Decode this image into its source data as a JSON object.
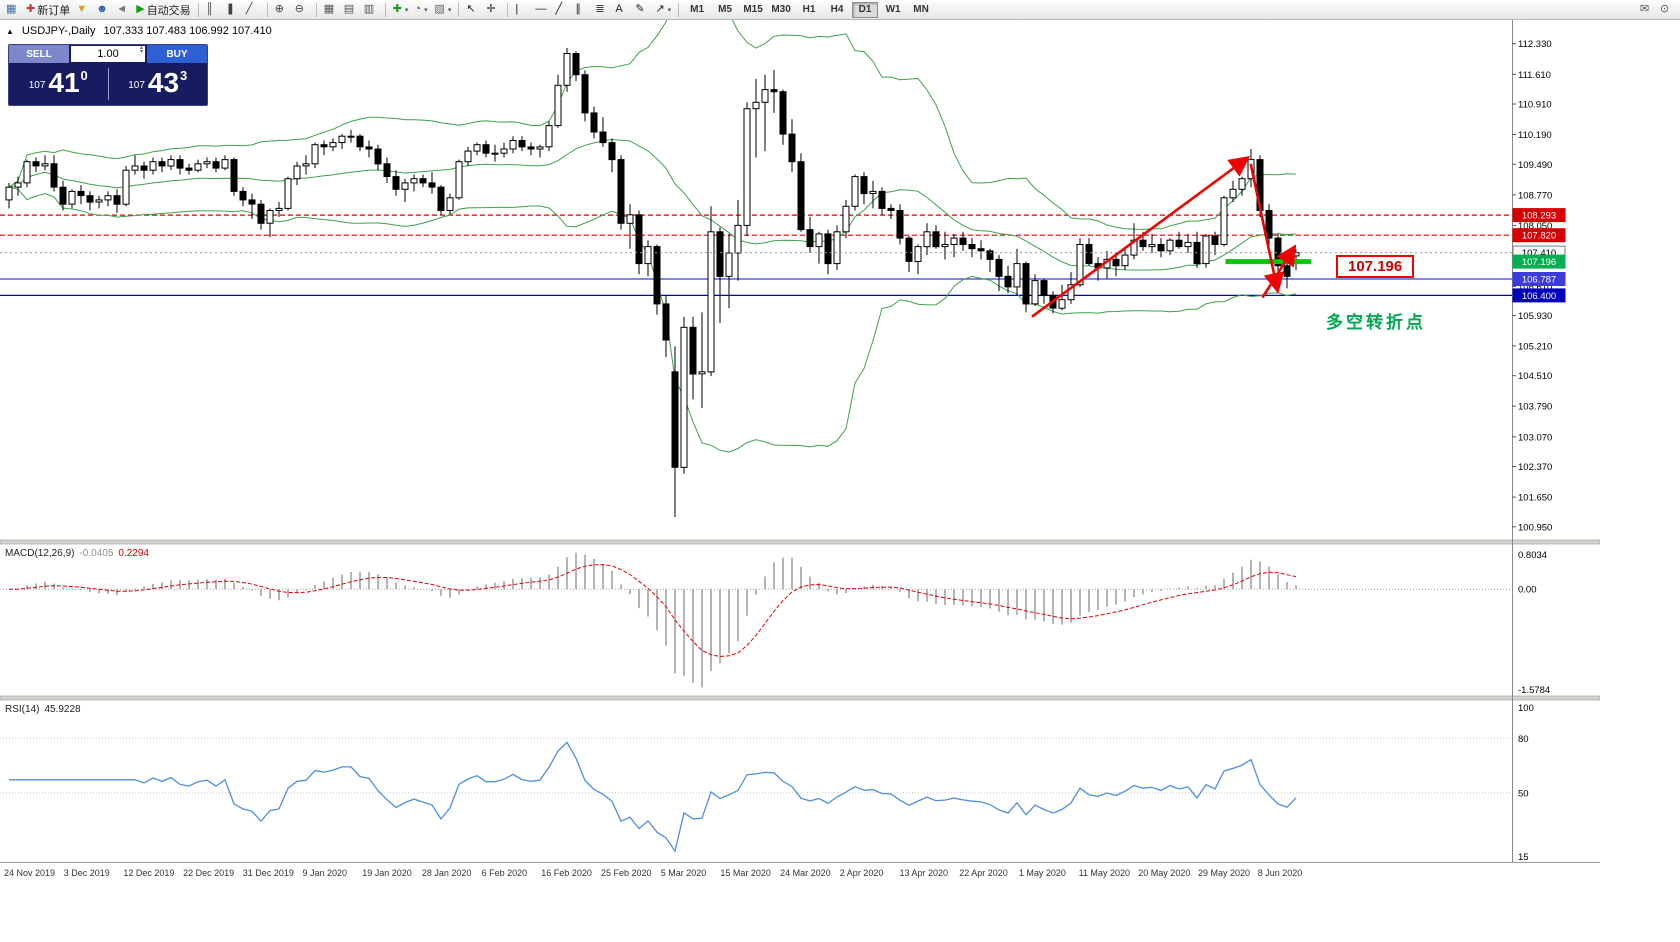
{
  "toolbar": {
    "caret_glyph": "▾",
    "items": [
      {
        "name": "new-window-icon",
        "glyph": "▦",
        "color": "#3a6ea5"
      },
      {
        "name": "new-order-button",
        "glyph": "✚",
        "color": "#c43c3c",
        "label": "新订单"
      },
      {
        "name": "wizard-icon",
        "glyph": "▼",
        "color": "#d9a21e"
      },
      {
        "name": "profile-icon",
        "glyph": "☻",
        "color": "#2a5fb4"
      },
      {
        "name": "broadcast-icon",
        "glyph": "◄",
        "color": "#777777"
      },
      {
        "name": "autotrading-button",
        "glyph": "▶",
        "color": "#18a018",
        "label": "自动交易"
      },
      {
        "sep": true
      },
      {
        "name": "bar-chart-icon",
        "glyph": "║",
        "color": "#444444"
      },
      {
        "name": "candlestick-chart-icon",
        "glyph": "❚",
        "color": "#444444"
      },
      {
        "name": "line-chart-icon",
        "glyph": "╱",
        "color": "#444444"
      },
      {
        "sep": true
      },
      {
        "name": "zoom-in-icon",
        "glyph": "⊕",
        "color": "#444444"
      },
      {
        "name": "zoom-out-icon",
        "glyph": "⊖",
        "color": "#444444"
      },
      {
        "sep": true
      },
      {
        "name": "tile-windows-icon",
        "glyph": "▦",
        "color": "#555555"
      },
      {
        "name": "cascade-windows-icon",
        "glyph": "▤",
        "color": "#555555"
      },
      {
        "name": "arrange-windows-icon",
        "glyph": "▥",
        "color": "#555555"
      },
      {
        "sep": true
      },
      {
        "name": "new-chart-dropdown",
        "glyph": "✚",
        "color": "#18a018",
        "dropdown": true
      },
      {
        "name": "profiles-dropdown",
        "glyph": "◔",
        "color": "#2a5fb4",
        "dropdown": true
      },
      {
        "name": "templates-dropdown",
        "glyph": "▧",
        "color": "#666666",
        "dropdown": true
      },
      {
        "sep": true
      },
      {
        "name": "cursor-tool",
        "glyph": "↖",
        "color": "#222222"
      },
      {
        "name": "crosshair-tool",
        "glyph": "✛",
        "color": "#222222"
      },
      {
        "sep": true
      },
      {
        "name": "vertical-line-tool",
        "glyph": "|",
        "color": "#222222"
      },
      {
        "name": "horizontal-line-tool",
        "glyph": "―",
        "color": "#222222"
      },
      {
        "name": "trendline-tool",
        "glyph": "╱",
        "color": "#222222"
      },
      {
        "name": "channel-tool",
        "glyph": "∥",
        "color": "#222222"
      },
      {
        "name": "fibonacci-tool",
        "glyph": "≣",
        "color": "#222222"
      },
      {
        "name": "text-tool",
        "glyph": "A",
        "color": "#222222"
      },
      {
        "name": "label-tool",
        "glyph": "✎",
        "color": "#222222"
      },
      {
        "name": "arrows-dropdown",
        "glyph": "↗",
        "color": "#222222",
        "dropdown": true
      },
      {
        "sep": true
      }
    ],
    "timeframes": [
      "M1",
      "M5",
      "M15",
      "M30",
      "H1",
      "H4",
      "D1",
      "W1",
      "MN"
    ],
    "active_timeframe": "D1",
    "right_items": [
      {
        "name": "news-icon",
        "glyph": "✉",
        "color": "#555555"
      },
      {
        "name": "search-icon",
        "glyph": "⊙",
        "color": "#555555"
      }
    ]
  },
  "chart_header": {
    "toggle_glyph": "▲",
    "symbol": "USDJPY-,Daily",
    "ohlc": "107.333 107.483 106.992 107.410"
  },
  "trade_panel": {
    "sell_label": "SELL",
    "buy_label": "BUY",
    "volume": "1.00",
    "spinner_up": "▴",
    "spinner_down": "▾",
    "sell_prefix": "107",
    "sell_big": "41",
    "sell_sup": "0",
    "buy_prefix": "107",
    "buy_big": "43",
    "buy_sup": "3"
  },
  "price_axis": [
    "112.330",
    "111.610",
    "110.910",
    "110.190",
    "109.490",
    "108.770",
    "108.050",
    "107.330",
    "106.610",
    "105.930",
    "105.210",
    "104.510",
    "103.790",
    "103.070",
    "102.370",
    "101.650",
    "100.950"
  ],
  "price_tags": [
    {
      "text": "108.293",
      "price": 108.293,
      "bg": "#d40000",
      "fg": "#ffffff"
    },
    {
      "text": "107.820",
      "price": 107.82,
      "bg": "#d40000",
      "fg": "#ffffff"
    },
    {
      "text": "107.410",
      "price": 107.41,
      "bg": "#f8f8f8",
      "fg": "#000000",
      "border": "#808080"
    },
    {
      "text": "107.196",
      "price": 107.196,
      "bg": "#00b050",
      "fg": "#ffffff"
    },
    {
      "text": "106.787",
      "price": 106.787,
      "bg": "#3c3cdc",
      "fg": "#ffffff"
    },
    {
      "text": "106.400",
      "price": 106.4,
      "bg": "#0000bb",
      "fg": "#ffffff"
    }
  ],
  "macd_panel": {
    "label": "MACD(12,26,9)",
    "value_main": "-0.0405",
    "value_signal": "0.2294",
    "axis_top": "0.8034",
    "axis_zero": "0.00",
    "axis_bottom": "-1.5784"
  },
  "rsi_panel": {
    "label": "RSI(14)",
    "value": "45.9228",
    "axis_labels": [
      "100",
      "80",
      "50",
      "15"
    ]
  },
  "date_axis": [
    "24 Nov 2019",
    "3 Dec 2019",
    "12 Dec 2019",
    "22 Dec 2019",
    "31 Dec 2019",
    "9 Jan 2020",
    "19 Jan 2020",
    "28 Jan 2020",
    "6 Feb 2020",
    "16 Feb 2020",
    "25 Feb 2020",
    "5 Mar 2020",
    "15 Mar 2020",
    "24 Mar 2020",
    "2 Apr 2020",
    "13 Apr 2020",
    "22 Apr 2020",
    "1 May 2020",
    "11 May 2020",
    "20 May 2020",
    "29 May 2020",
    "8 Jun 2020"
  ],
  "annotations": {
    "turning_point": "多空转折点",
    "level_label": "107.196",
    "arrow_color": "#f00000",
    "green_segment": {
      "price": 107.196,
      "from_index": 135.5,
      "to_index": 145,
      "color": "#00c800",
      "width": 5
    },
    "arrows": [
      {
        "from": {
          "i": 114,
          "p": 105.9
        },
        "to": {
          "i": 138,
          "p": 109.65
        }
      },
      {
        "from": {
          "i": 138.3,
          "p": 109.5
        },
        "to": {
          "i": 141.3,
          "p": 106.5
        }
      },
      {
        "from": {
          "i": 139.6,
          "p": 106.35
        },
        "to": {
          "i": 143.2,
          "p": 107.55
        }
      }
    ]
  },
  "chart_data": {
    "type": "candlestick",
    "symbol": "USDJPY-",
    "timeframe": "Daily",
    "current_price": 107.41,
    "ohlc_last": {
      "open": 107.333,
      "high": 107.483,
      "low": 106.992,
      "close": 107.41
    },
    "price_range_visible": [
      100.95,
      112.33
    ],
    "hlines": [
      {
        "price": 108.293,
        "color": "#e00000",
        "dash": "5 3"
      },
      {
        "price": 107.82,
        "color": "#e00000",
        "dash": "5 3"
      },
      {
        "price": 106.787,
        "color": "#3c3cdc"
      },
      {
        "price": 106.4,
        "color": "#0000bb"
      }
    ],
    "indicators": {
      "bollinger": {
        "period": 20,
        "deviation": 2,
        "color": "#3fa14c"
      },
      "macd": {
        "fast": 12,
        "slow": 26,
        "signal": 9
      },
      "rsi": {
        "period": 14,
        "levels": [
          80,
          50
        ]
      }
    },
    "candles": [
      [
        108.65,
        109.05,
        108.45,
        108.95
      ],
      [
        108.95,
        109.2,
        108.75,
        109.05
      ],
      [
        109.05,
        109.6,
        108.95,
        109.55
      ],
      [
        109.55,
        109.65,
        109.3,
        109.45
      ],
      [
        109.45,
        109.7,
        109.35,
        109.5
      ],
      [
        109.5,
        109.7,
        108.85,
        108.95
      ],
      [
        108.95,
        109.1,
        108.4,
        108.55
      ],
      [
        108.55,
        108.9,
        108.45,
        108.85
      ],
      [
        108.85,
        109.0,
        108.55,
        108.75
      ],
      [
        108.75,
        108.85,
        108.4,
        108.6
      ],
      [
        108.6,
        108.75,
        108.45,
        108.65
      ],
      [
        108.65,
        108.85,
        108.5,
        108.75
      ],
      [
        108.75,
        108.9,
        108.35,
        108.55
      ],
      [
        108.55,
        109.45,
        108.5,
        109.35
      ],
      [
        109.35,
        109.7,
        109.25,
        109.45
      ],
      [
        109.45,
        109.55,
        109.15,
        109.35
      ],
      [
        109.35,
        109.65,
        109.25,
        109.55
      ],
      [
        109.55,
        109.65,
        109.3,
        109.45
      ],
      [
        109.45,
        109.7,
        109.35,
        109.6
      ],
      [
        109.6,
        109.7,
        109.25,
        109.4
      ],
      [
        109.4,
        109.5,
        109.25,
        109.35
      ],
      [
        109.35,
        109.6,
        109.3,
        109.5
      ],
      [
        109.5,
        109.65,
        109.4,
        109.55
      ],
      [
        109.55,
        109.65,
        109.3,
        109.4
      ],
      [
        109.4,
        109.7,
        109.35,
        109.6
      ],
      [
        109.6,
        109.65,
        108.75,
        108.85
      ],
      [
        108.85,
        108.95,
        108.5,
        108.65
      ],
      [
        108.65,
        108.8,
        108.2,
        108.55
      ],
      [
        108.55,
        108.65,
        107.95,
        108.1
      ],
      [
        108.1,
        108.45,
        107.77,
        108.4
      ],
      [
        108.4,
        108.6,
        108.25,
        108.45
      ],
      [
        108.45,
        109.2,
        108.4,
        109.15
      ],
      [
        109.15,
        109.55,
        109.0,
        109.45
      ],
      [
        109.45,
        109.7,
        109.25,
        109.5
      ],
      [
        109.5,
        110.0,
        109.4,
        109.95
      ],
      [
        109.95,
        110.05,
        109.7,
        109.9
      ],
      [
        109.9,
        110.1,
        109.8,
        110.0
      ],
      [
        110.0,
        110.2,
        109.85,
        110.15
      ],
      [
        110.15,
        110.3,
        110.0,
        110.15
      ],
      [
        110.15,
        110.2,
        109.8,
        109.9
      ],
      [
        109.9,
        110.05,
        109.65,
        109.85
      ],
      [
        109.85,
        109.95,
        109.35,
        109.5
      ],
      [
        109.5,
        109.65,
        109.05,
        109.2
      ],
      [
        109.2,
        109.35,
        108.75,
        108.9
      ],
      [
        108.9,
        109.15,
        108.6,
        109.05
      ],
      [
        109.05,
        109.25,
        108.85,
        109.15
      ],
      [
        109.15,
        109.25,
        108.95,
        109.05
      ],
      [
        109.05,
        109.3,
        108.8,
        108.95
      ],
      [
        108.95,
        109.0,
        108.3,
        108.4
      ],
      [
        108.4,
        108.8,
        108.3,
        108.7
      ],
      [
        108.7,
        109.6,
        108.65,
        109.55
      ],
      [
        109.55,
        109.9,
        109.45,
        109.8
      ],
      [
        109.8,
        110.0,
        109.7,
        109.95
      ],
      [
        109.95,
        110.05,
        109.65,
        109.75
      ],
      [
        109.75,
        109.95,
        109.55,
        109.75
      ],
      [
        109.75,
        110.0,
        109.65,
        109.85
      ],
      [
        109.85,
        110.15,
        109.75,
        110.05
      ],
      [
        110.05,
        110.15,
        109.8,
        109.9
      ],
      [
        109.9,
        110.0,
        109.7,
        109.85
      ],
      [
        109.85,
        109.95,
        109.65,
        109.9
      ],
      [
        109.9,
        110.5,
        109.8,
        110.4
      ],
      [
        110.4,
        111.6,
        110.35,
        111.35
      ],
      [
        111.35,
        112.23,
        111.2,
        112.1
      ],
      [
        112.1,
        112.15,
        111.45,
        111.6
      ],
      [
        111.6,
        111.7,
        110.5,
        110.7
      ],
      [
        110.7,
        110.85,
        110.1,
        110.25
      ],
      [
        110.25,
        110.6,
        109.9,
        110.0
      ],
      [
        110.0,
        110.1,
        109.3,
        109.6
      ],
      [
        109.6,
        109.7,
        107.95,
        108.1
      ],
      [
        108.1,
        108.55,
        107.5,
        108.3
      ],
      [
        108.3,
        108.4,
        106.9,
        107.15
      ],
      [
        107.15,
        107.7,
        106.85,
        107.55
      ],
      [
        107.55,
        107.6,
        105.95,
        106.2
      ],
      [
        106.2,
        106.4,
        104.95,
        105.35
      ],
      [
        104.6,
        105.2,
        101.18,
        102.35
      ],
      [
        102.35,
        105.9,
        102.2,
        105.65
      ],
      [
        105.65,
        105.9,
        103.95,
        104.55
      ],
      [
        104.55,
        106.0,
        103.75,
        104.6
      ],
      [
        104.6,
        108.5,
        104.5,
        107.9
      ],
      [
        107.9,
        108.0,
        105.75,
        106.85
      ],
      [
        106.85,
        107.85,
        106.1,
        107.4
      ],
      [
        107.4,
        108.65,
        106.75,
        108.05
      ],
      [
        108.05,
        110.95,
        107.8,
        110.8
      ],
      [
        110.8,
        111.5,
        109.65,
        110.95
      ],
      [
        110.95,
        111.6,
        109.8,
        111.25
      ],
      [
        111.25,
        111.71,
        110.7,
        111.2
      ],
      [
        111.2,
        111.25,
        109.95,
        110.2
      ],
      [
        110.2,
        110.55,
        109.3,
        109.55
      ],
      [
        109.55,
        109.75,
        107.9,
        107.95
      ],
      [
        107.95,
        108.25,
        107.4,
        107.55
      ],
      [
        107.55,
        107.9,
        107.15,
        107.85
      ],
      [
        107.85,
        107.95,
        106.9,
        107.15
      ],
      [
        107.15,
        108.05,
        107.0,
        107.9
      ],
      [
        107.9,
        108.65,
        107.75,
        108.5
      ],
      [
        108.5,
        109.25,
        108.4,
        109.2
      ],
      [
        109.2,
        109.3,
        108.55,
        108.8
      ],
      [
        108.8,
        109.1,
        108.45,
        108.85
      ],
      [
        108.85,
        108.95,
        108.3,
        108.45
      ],
      [
        108.45,
        108.55,
        108.2,
        108.4
      ],
      [
        108.4,
        108.55,
        107.6,
        107.75
      ],
      [
        107.75,
        107.8,
        106.95,
        107.2
      ],
      [
        107.2,
        107.6,
        106.9,
        107.55
      ],
      [
        107.55,
        108.1,
        107.35,
        107.9
      ],
      [
        107.9,
        108.05,
        107.5,
        107.55
      ],
      [
        107.55,
        107.9,
        107.25,
        107.6
      ],
      [
        107.6,
        107.85,
        107.3,
        107.75
      ],
      [
        107.75,
        107.9,
        107.45,
        107.6
      ],
      [
        107.6,
        107.75,
        107.3,
        107.5
      ],
      [
        107.5,
        107.7,
        107.25,
        107.45
      ],
      [
        107.45,
        107.5,
        106.95,
        107.25
      ],
      [
        107.25,
        107.35,
        106.5,
        106.85
      ],
      [
        106.85,
        107.1,
        106.45,
        106.6
      ],
      [
        106.6,
        107.5,
        106.4,
        107.15
      ],
      [
        107.15,
        107.2,
        106.0,
        106.2
      ],
      [
        106.2,
        106.9,
        106.15,
        106.75
      ],
      [
        106.75,
        106.8,
        106.2,
        106.4
      ],
      [
        106.4,
        106.5,
        105.98,
        106.1
      ],
      [
        106.1,
        106.65,
        106.05,
        106.3
      ],
      [
        106.3,
        106.95,
        106.2,
        106.65
      ],
      [
        106.65,
        107.75,
        106.6,
        107.6
      ],
      [
        107.6,
        107.75,
        107.1,
        107.15
      ],
      [
        107.15,
        107.3,
        106.75,
        107.05
      ],
      [
        107.05,
        107.45,
        106.8,
        107.25
      ],
      [
        107.25,
        107.4,
        106.85,
        107.1
      ],
      [
        107.1,
        107.55,
        107.0,
        107.35
      ],
      [
        107.35,
        108.1,
        107.25,
        107.7
      ],
      [
        107.7,
        107.9,
        107.45,
        107.55
      ],
      [
        107.55,
        107.85,
        107.4,
        107.6
      ],
      [
        107.6,
        107.75,
        107.3,
        107.45
      ],
      [
        107.45,
        107.75,
        107.35,
        107.7
      ],
      [
        107.7,
        107.9,
        107.5,
        107.55
      ],
      [
        107.55,
        107.85,
        107.4,
        107.65
      ],
      [
        107.65,
        107.9,
        107.05,
        107.15
      ],
      [
        107.15,
        107.85,
        107.05,
        107.8
      ],
      [
        107.8,
        107.9,
        107.35,
        107.6
      ],
      [
        107.6,
        108.75,
        107.55,
        108.7
      ],
      [
        108.7,
        109.1,
        108.6,
        108.9
      ],
      [
        108.9,
        109.2,
        108.75,
        109.15
      ],
      [
        109.15,
        109.85,
        108.95,
        109.6
      ],
      [
        109.6,
        109.7,
        108.25,
        108.4
      ],
      [
        108.4,
        108.55,
        107.55,
        107.75
      ],
      [
        107.75,
        107.85,
        106.95,
        107.1
      ],
      [
        107.1,
        107.35,
        106.57,
        106.85
      ],
      [
        107.333,
        107.483,
        106.992,
        107.41
      ]
    ]
  }
}
